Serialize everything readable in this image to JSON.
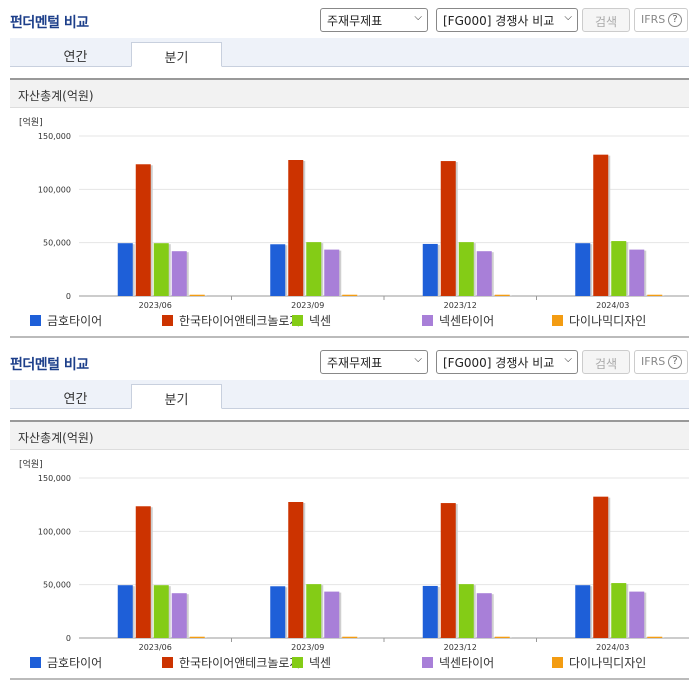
{
  "panels": [
    {
      "title": "펀더멘털 비교",
      "statement_select": "주재무제표",
      "peer_select": "[FG000] 경쟁사 비교",
      "search_label": "검색",
      "ifrs_label": "IFRS",
      "help_glyph": "?",
      "tabs": [
        {
          "label": "연간"
        },
        {
          "label": "분기"
        }
      ],
      "active_tab": "분기",
      "section_title": "자산총계(억원)"
    },
    {
      "title": "펀더멘털 비교",
      "statement_select": "주재무제표",
      "peer_select": "[FG000] 경쟁사 비교",
      "search_label": "검색",
      "ifrs_label": "IFRS",
      "help_glyph": "?",
      "tabs": [
        {
          "label": "연간"
        },
        {
          "label": "분기"
        }
      ],
      "active_tab": "분기",
      "section_title": "자산총계(억원)"
    }
  ],
  "chart_data": [
    {
      "type": "bar",
      "unit_label": "[억원]",
      "categories": [
        "2023/06",
        "2023/09",
        "2023/12",
        "2024/03"
      ],
      "ylim": [
        0,
        150000
      ],
      "yticks": [
        "0",
        "50,000",
        "100,000",
        "150,000"
      ],
      "grid": true,
      "legend_position": "bottom",
      "series": [
        {
          "name": "금호타이어",
          "color": "#1e5fd8",
          "values": [
            49500,
            48500,
            48800,
            49500
          ]
        },
        {
          "name": "한국타이어앤테크놀로지",
          "color": "#cc3300",
          "values": [
            123500,
            127500,
            126500,
            132500
          ]
        },
        {
          "name": "넥센",
          "color": "#84cc16",
          "values": [
            49500,
            50500,
            50500,
            51500
          ]
        },
        {
          "name": "넥센타이어",
          "color": "#a87fd8",
          "values": [
            42000,
            43500,
            42000,
            43500
          ]
        },
        {
          "name": "다이나믹디자인",
          "color": "#f39c12",
          "values": [
            1200,
            1200,
            1200,
            1200
          ]
        }
      ]
    },
    {
      "type": "bar",
      "unit_label": "[억원]",
      "categories": [
        "2023/06",
        "2023/09",
        "2023/12",
        "2024/03"
      ],
      "ylim": [
        0,
        150000
      ],
      "yticks": [
        "0",
        "50,000",
        "100,000",
        "150,000"
      ],
      "grid": true,
      "legend_position": "bottom",
      "series": [
        {
          "name": "금호타이어",
          "color": "#1e5fd8",
          "values": [
            49500,
            48500,
            48800,
            49500
          ]
        },
        {
          "name": "한국타이어앤테크놀로지",
          "color": "#cc3300",
          "values": [
            123500,
            127500,
            126500,
            132500
          ]
        },
        {
          "name": "넥센",
          "color": "#84cc16",
          "values": [
            49500,
            50500,
            50500,
            51500
          ]
        },
        {
          "name": "넥센타이어",
          "color": "#a87fd8",
          "values": [
            42000,
            43500,
            42000,
            43500
          ]
        },
        {
          "name": "다이나믹디자인",
          "color": "#f39c12",
          "values": [
            1200,
            1200,
            1200,
            1200
          ]
        }
      ]
    }
  ]
}
